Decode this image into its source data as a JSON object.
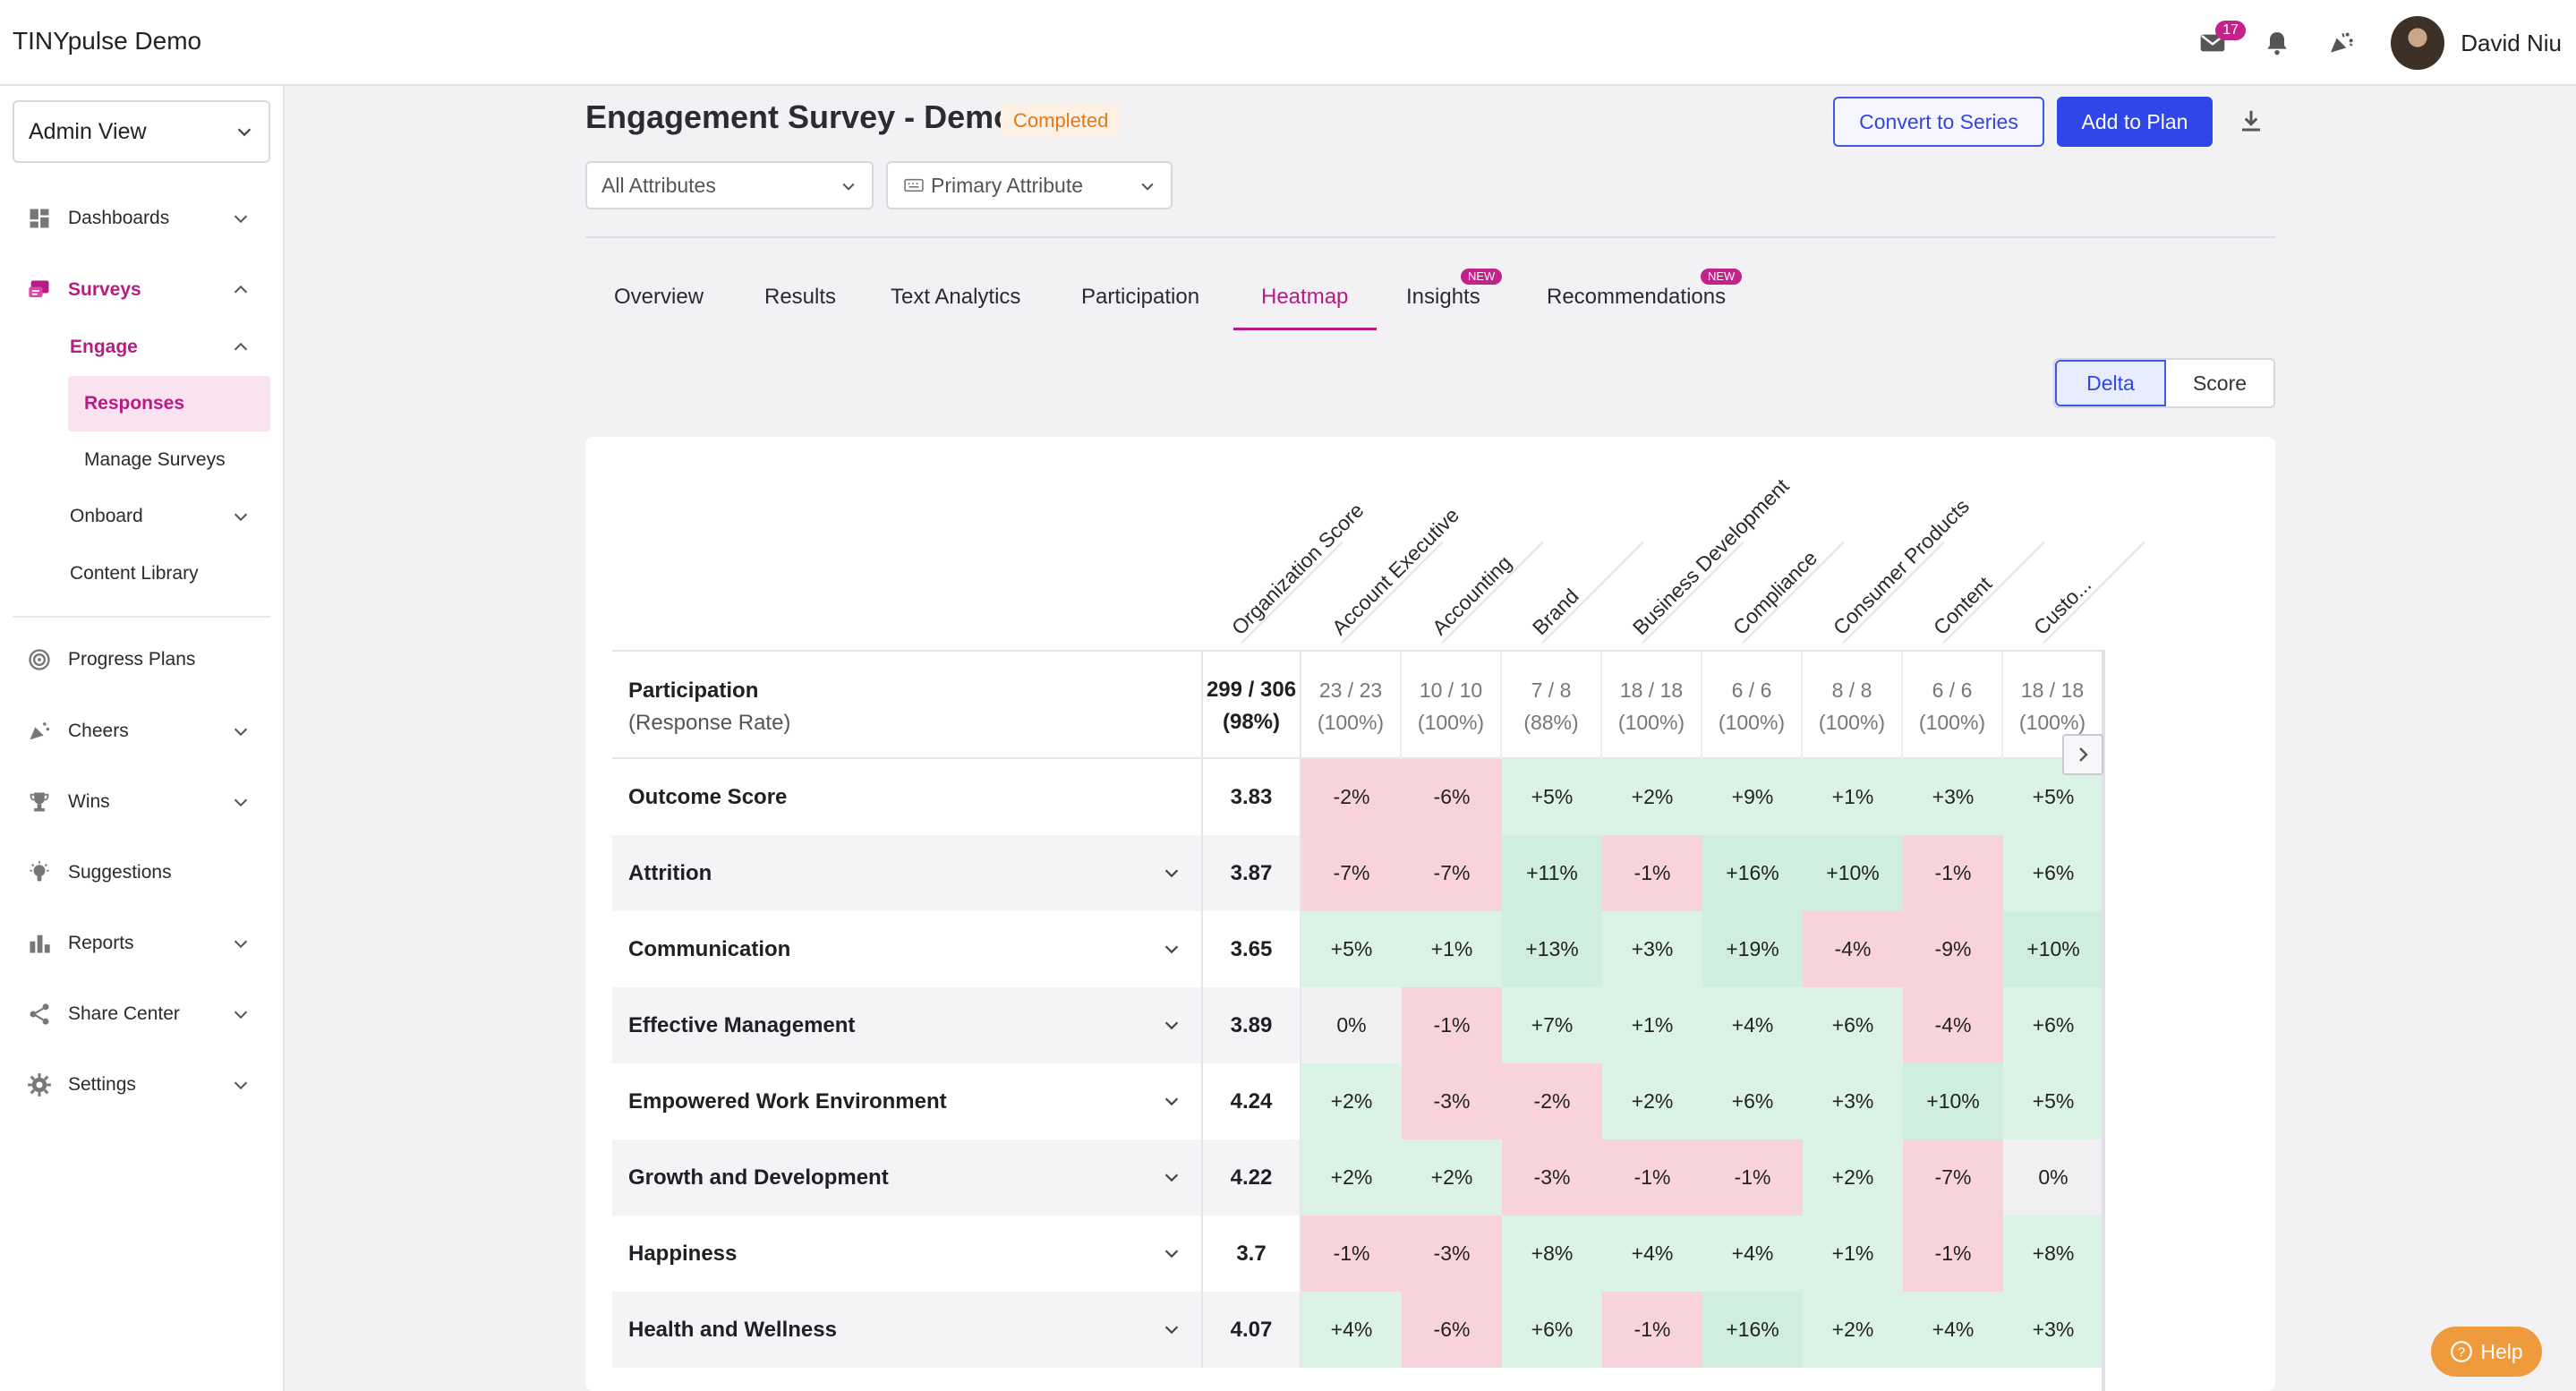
{
  "app": {
    "title": "TINYpulse Demo"
  },
  "topbar": {
    "mail_badge": "17",
    "user_name": "David Niu"
  },
  "sidebar": {
    "view_select": "Admin View",
    "items": {
      "dashboards": "Dashboards",
      "surveys": "Surveys",
      "engage": "Engage",
      "responses": "Responses",
      "manage_surveys": "Manage Surveys",
      "onboard": "Onboard",
      "content_library": "Content Library",
      "progress_plans": "Progress Plans",
      "cheers": "Cheers",
      "wins": "Wins",
      "suggestions": "Suggestions",
      "reports": "Reports",
      "share_center": "Share Center",
      "settings": "Settings"
    }
  },
  "header": {
    "title": "Engagement Survey - Demo",
    "status": "Completed",
    "convert_label": "Convert to Series",
    "add_plan_label": "Add to Plan",
    "filter_attributes": "All Attributes",
    "filter_primary": "Primary Attribute"
  },
  "tabs": {
    "overview": "Overview",
    "results": "Results",
    "text_analytics": "Text Analytics",
    "participation": "Participation",
    "heatmap": "Heatmap",
    "insights": "Insights",
    "recommendations": "Recommendations",
    "new_tag": "NEW"
  },
  "toggle": {
    "delta": "Delta",
    "score": "Score"
  },
  "heatmap": {
    "columns": [
      "Organization Score",
      "Account Executive",
      "Accounting",
      "Brand",
      "Business Development",
      "Compliance",
      "Consumer Products",
      "Content",
      "Custo..."
    ],
    "participation": {
      "label": "Participation",
      "sublabel": "(Response Rate)",
      "org_count": "299 / 306",
      "org_rate": "(98%)",
      "cells": [
        [
          "23 / 23",
          "(100%)"
        ],
        [
          "10 / 10",
          "(100%)"
        ],
        [
          "7 / 8",
          "(88%)"
        ],
        [
          "18 / 18",
          "(100%)"
        ],
        [
          "6 / 6",
          "(100%)"
        ],
        [
          "8 / 8",
          "(100%)"
        ],
        [
          "6 / 6",
          "(100%)"
        ],
        [
          "18 / 18",
          "(100%)"
        ]
      ]
    },
    "rows": [
      {
        "label": "Outcome Score",
        "score": "3.83",
        "values": [
          "-2%",
          "-6%",
          "+5%",
          "+2%",
          "+9%",
          "+1%",
          "+3%",
          "+5%"
        ]
      },
      {
        "label": "Attrition",
        "score": "3.87",
        "values": [
          "-7%",
          "-7%",
          "+11%",
          "-1%",
          "+16%",
          "+10%",
          "-1%",
          "+6%"
        ]
      },
      {
        "label": "Communication",
        "score": "3.65",
        "values": [
          "+5%",
          "+1%",
          "+13%",
          "+3%",
          "+19%",
          "-4%",
          "-9%",
          "+10%"
        ]
      },
      {
        "label": "Effective Management",
        "score": "3.89",
        "values": [
          "0%",
          "-1%",
          "+7%",
          "+1%",
          "+4%",
          "+6%",
          "-4%",
          "+6%"
        ]
      },
      {
        "label": "Empowered Work Environment",
        "score": "4.24",
        "values": [
          "+2%",
          "-3%",
          "-2%",
          "+2%",
          "+6%",
          "+3%",
          "+10%",
          "+5%"
        ]
      },
      {
        "label": "Growth and Development",
        "score": "4.22",
        "values": [
          "+2%",
          "+2%",
          "-3%",
          "-1%",
          "-1%",
          "+2%",
          "-7%",
          "0%"
        ]
      },
      {
        "label": "Happiness",
        "score": "3.7",
        "values": [
          "-1%",
          "-3%",
          "+8%",
          "+4%",
          "+4%",
          "+1%",
          "-1%",
          "+8%"
        ]
      },
      {
        "label": "Health and Wellness",
        "score": "4.07",
        "values": [
          "+4%",
          "-6%",
          "+6%",
          "-1%",
          "+16%",
          "+2%",
          "+4%",
          "+3%"
        ]
      }
    ]
  },
  "help": {
    "label": "Help"
  }
}
